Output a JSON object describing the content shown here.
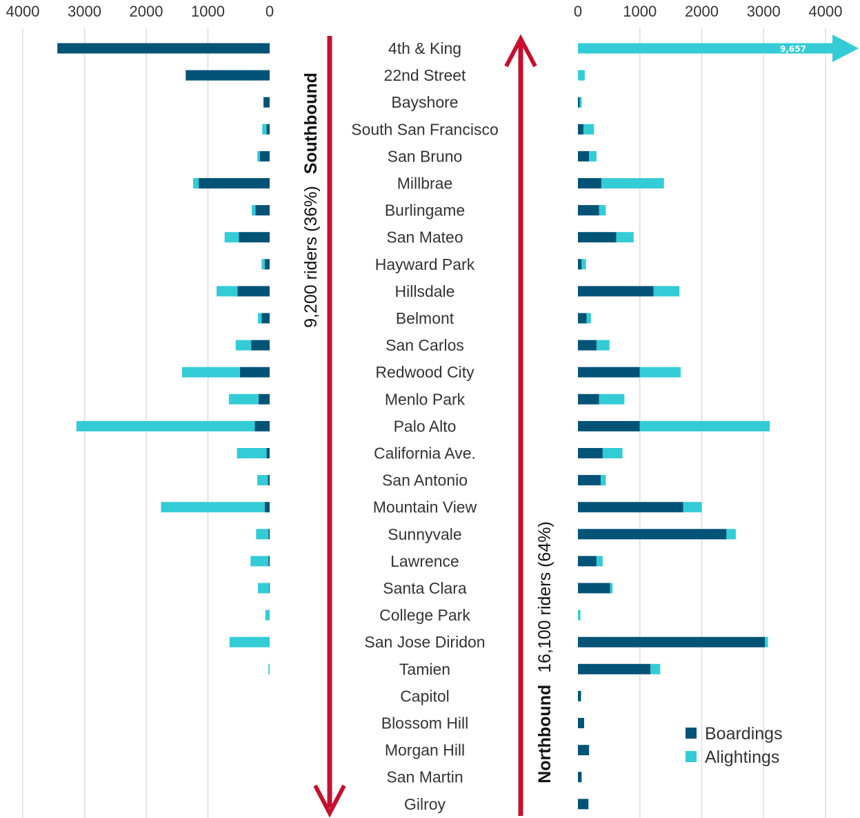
{
  "colors": {
    "boardings": "#035377",
    "alightings": "#33CCD6",
    "direction_arrow": "#C8102E",
    "gridline": "#DDDDDD"
  },
  "southbound": {
    "direction_label": "Southbound",
    "riders_label": "9,200 riders (36%)"
  },
  "northbound": {
    "direction_label": "Northbound",
    "riders_label": "16,100 riders (64%)"
  },
  "legend": {
    "boardings_label": "Boardings",
    "alightings_label": "Alightings"
  },
  "chart_data": {
    "type": "bar",
    "orientation": "horizontal",
    "layout": "back-to-back",
    "stacked": true,
    "categories": [
      "4th & King",
      "22nd Street",
      "Bayshore",
      "South San Francisco",
      "San Bruno",
      "Millbrae",
      "Burlingame",
      "San Mateo",
      "Hayward Park",
      "Hillsdale",
      "Belmont",
      "San Carlos",
      "Redwood City",
      "Menlo Park",
      "Palo Alto",
      "California Ave.",
      "San Antonio",
      "Mountain View",
      "Sunnyvale",
      "Lawrence",
      "Santa Clara",
      "College Park",
      "San Jose Diridon",
      "Tamien",
      "Capitol",
      "Blossom Hill",
      "Morgan Hill",
      "San Martin",
      "Gilroy"
    ],
    "left_panel": {
      "name": "Southbound",
      "xlim": [
        0,
        4000
      ],
      "ticks": [
        4000,
        3000,
        2000,
        1000,
        0
      ],
      "series": [
        {
          "name": "Boardings",
          "values": [
            3440,
            1360,
            100,
            50,
            160,
            1150,
            230,
            500,
            80,
            520,
            130,
            300,
            480,
            180,
            240,
            50,
            30,
            80,
            20,
            20,
            10,
            0,
            0,
            0,
            0,
            0,
            0,
            0,
            0
          ]
        },
        {
          "name": "Alightings",
          "values": [
            0,
            0,
            0,
            70,
            40,
            90,
            60,
            230,
            50,
            340,
            60,
            250,
            940,
            480,
            2890,
            480,
            170,
            1680,
            200,
            290,
            180,
            70,
            650,
            20,
            0,
            0,
            0,
            0,
            0
          ]
        }
      ]
    },
    "right_panel": {
      "name": "Northbound",
      "xlim": [
        0,
        4000
      ],
      "ticks": [
        0,
        1000,
        2000,
        3000,
        4000
      ],
      "series": [
        {
          "name": "Boardings",
          "values": [
            0,
            0,
            30,
            90,
            180,
            380,
            340,
            620,
            60,
            1220,
            140,
            300,
            1000,
            340,
            1000,
            400,
            370,
            1700,
            2400,
            300,
            520,
            0,
            3020,
            1170,
            50,
            100,
            180,
            60,
            170
          ]
        },
        {
          "name": "Alightings",
          "values": [
            9657,
            110,
            30,
            170,
            120,
            1010,
            110,
            280,
            70,
            420,
            70,
            210,
            660,
            410,
            2100,
            320,
            80,
            300,
            150,
            100,
            40,
            40,
            50,
            160,
            0,
            0,
            0,
            0,
            0
          ]
        }
      ],
      "truncated": {
        "category": "4th & King",
        "label": "9,657"
      }
    },
    "legend_position": "bottom-right",
    "grid": true
  }
}
